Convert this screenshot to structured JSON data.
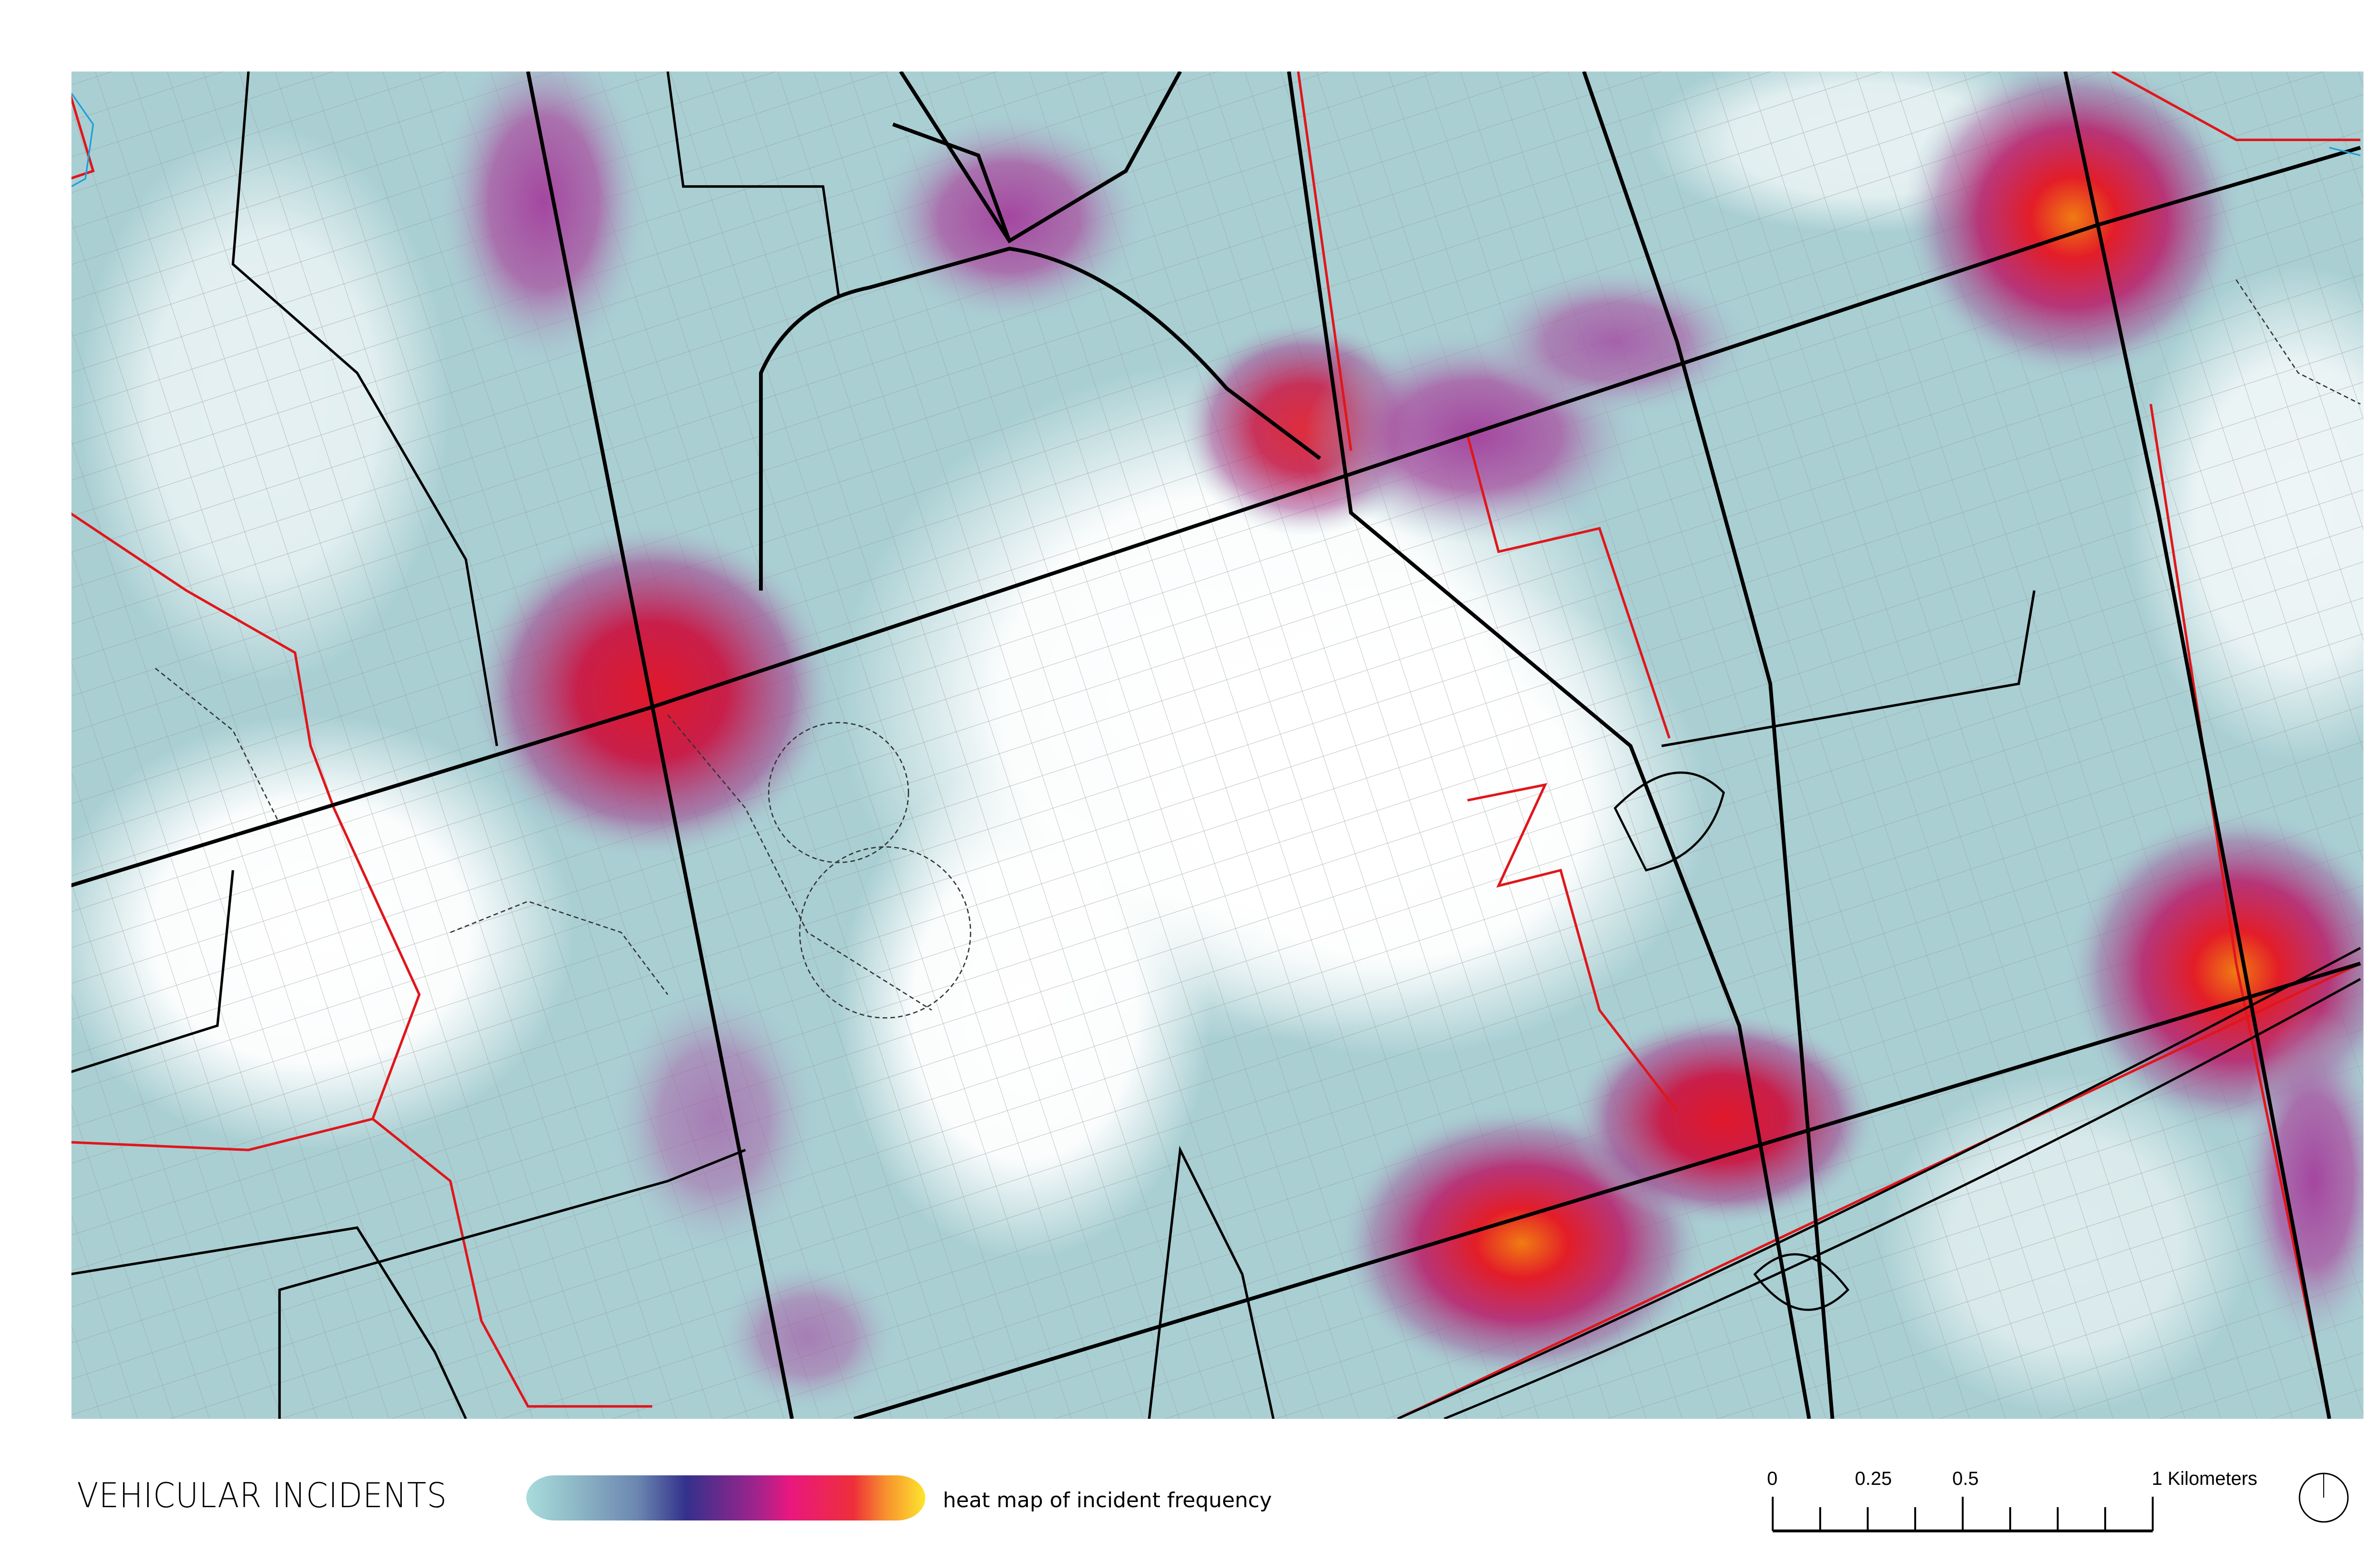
{
  "map": {
    "title": "VEHICULAR INCIDENTS",
    "colors": {
      "base_teal": "#a9cfd3",
      "major_road": "#000000",
      "boundary": "#e0161b",
      "minor_road": "#8a8a8a",
      "water": "#1aa0d8"
    },
    "legend": {
      "label": "heat map of incident frequency",
      "ramp_colors": [
        "#a8dcdc",
        "#6b86b0",
        "#33318c",
        "#a2238c",
        "#e9177f",
        "#ee2f3a",
        "#fde62e"
      ]
    },
    "scale_bar": {
      "labels": [
        "0",
        "0.25",
        "0.5",
        "1 Kilometers"
      ],
      "unit": "Kilometers",
      "max_value": 1,
      "divisions": 8
    },
    "north_arrow": "north-arrow-icon"
  }
}
